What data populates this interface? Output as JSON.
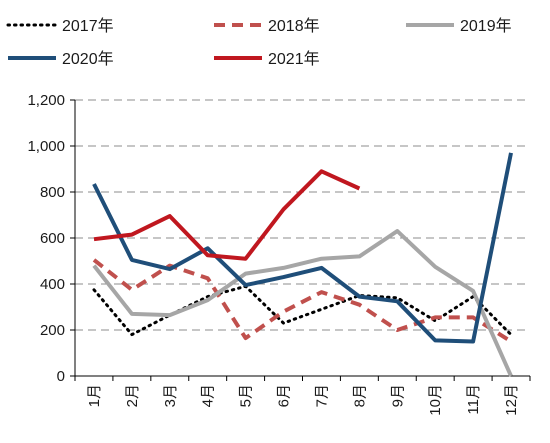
{
  "chart_data": {
    "type": "line",
    "title": "",
    "xlabel": "",
    "ylabel": "",
    "categories": [
      "1月",
      "2月",
      "3月",
      "4月",
      "5月",
      "6月",
      "7月",
      "8月",
      "9月",
      "10月",
      "11月",
      "12月"
    ],
    "ylim": [
      0,
      1200
    ],
    "yticks": [
      0,
      200,
      400,
      600,
      800,
      1000,
      1200
    ],
    "ytick_labels": [
      "0",
      "200",
      "400",
      "600",
      "800",
      "1,000",
      "1,200"
    ],
    "grid": "horizontal-dashed",
    "legend": "top",
    "series": [
      {
        "name": "2017年",
        "color": "#000000",
        "style": "dotted",
        "values": [
          375,
          180,
          265,
          345,
          390,
          230,
          290,
          350,
          340,
          240,
          345,
          180
        ]
      },
      {
        "name": "2018年",
        "color": "#c0504d",
        "style": "dashed",
        "values": [
          505,
          375,
          480,
          425,
          165,
          280,
          365,
          310,
          200,
          255,
          255,
          150
        ]
      },
      {
        "name": "2019年",
        "color": "#a6a6a6",
        "style": "solid",
        "values": [
          480,
          270,
          265,
          330,
          445,
          470,
          510,
          520,
          630,
          475,
          370,
          0
        ]
      },
      {
        "name": "2020年",
        "color": "#1f4e79",
        "style": "solid",
        "values": [
          835,
          505,
          465,
          555,
          395,
          430,
          470,
          345,
          325,
          155,
          150,
          970
        ]
      },
      {
        "name": "2021年",
        "color": "#c0171f",
        "style": "solid",
        "values": [
          595,
          615,
          695,
          525,
          510,
          725,
          890,
          815,
          null,
          null,
          null,
          null
        ]
      }
    ]
  }
}
